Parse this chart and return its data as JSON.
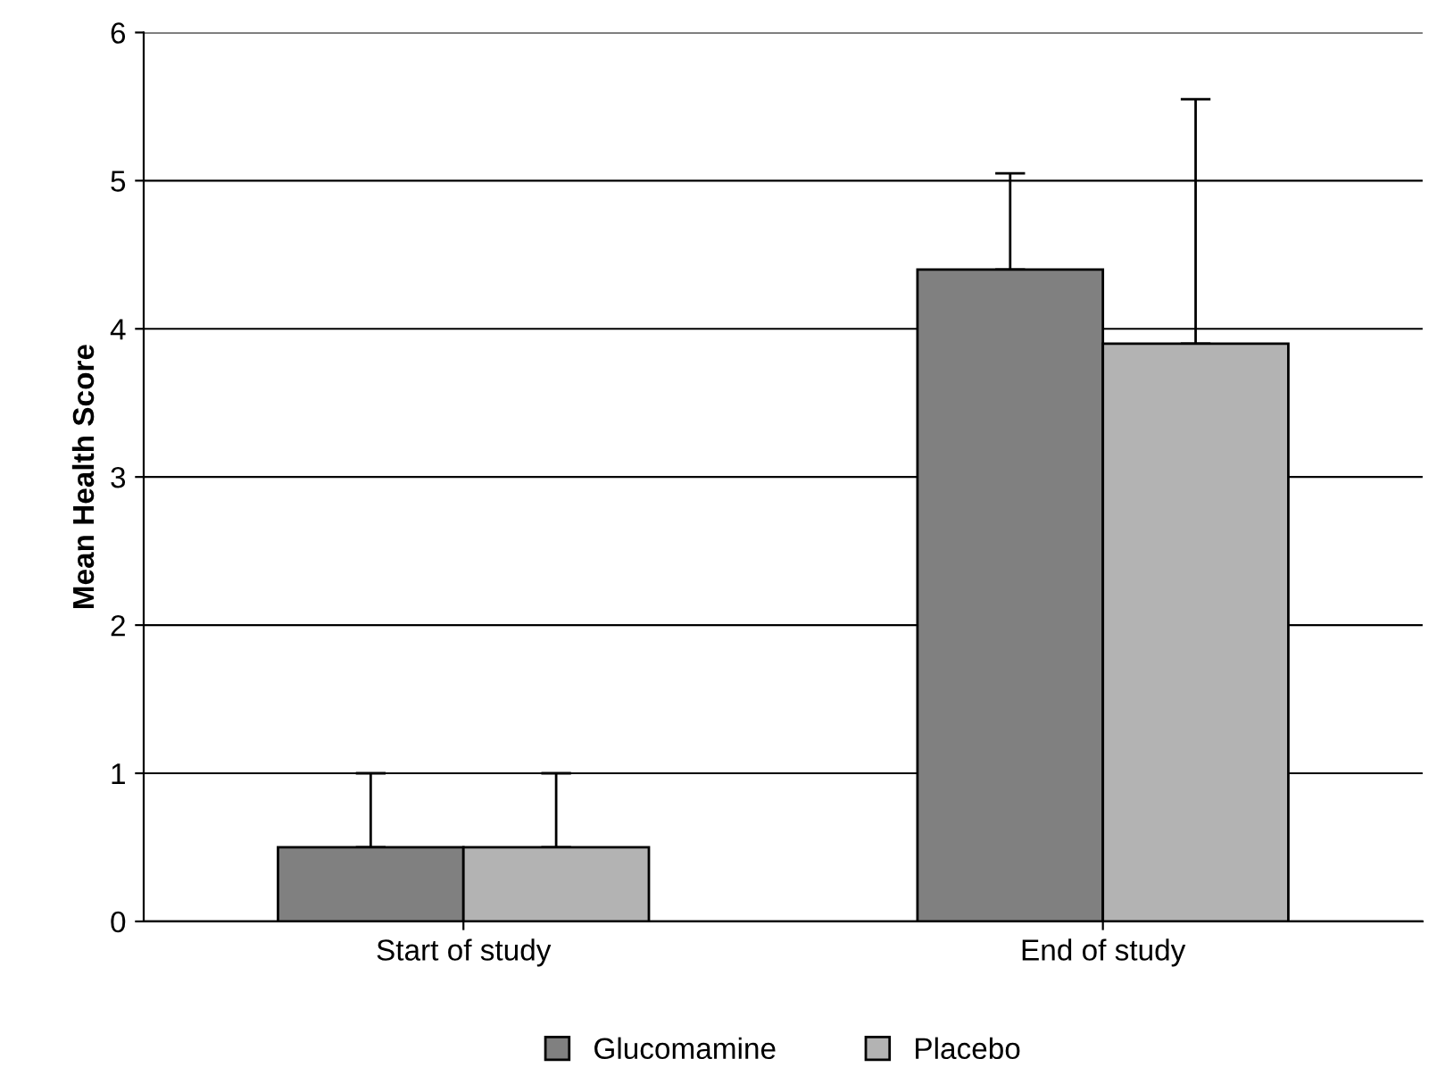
{
  "chart_data": {
    "type": "bar",
    "ylabel": "Mean Health Score",
    "categories": [
      "Start of study",
      "End of study"
    ],
    "series": [
      {
        "name": "Glucomamine",
        "color": "#808080",
        "values": [
          0.5,
          4.4
        ],
        "errors": [
          [
            0.5,
            1.0
          ],
          [
            4.4,
            5.05
          ]
        ]
      },
      {
        "name": "Placebo",
        "color": "#b3b3b3",
        "values": [
          0.5,
          3.9
        ],
        "errors": [
          [
            0.5,
            1.0
          ],
          [
            3.9,
            5.55
          ]
        ]
      }
    ],
    "ylim": [
      0,
      6
    ],
    "yticks": [
      0,
      1,
      2,
      3,
      4,
      5,
      6
    ],
    "grid": "y",
    "legend": "bottom"
  }
}
